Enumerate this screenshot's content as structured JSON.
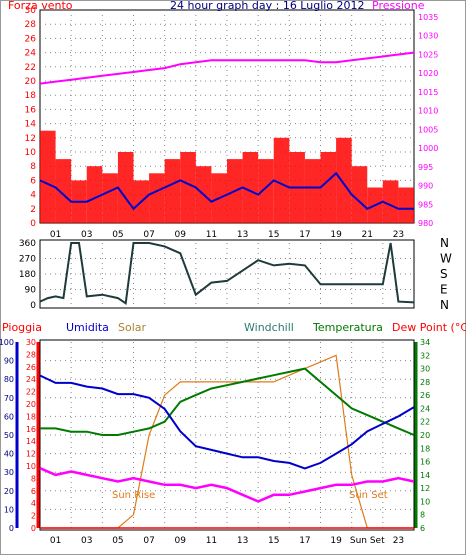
{
  "header": {
    "left": "Forza vento",
    "center": "24 hour graph day : 16 Luglio 2012",
    "right": "Pressione"
  },
  "colors": {
    "red": "#ff0000",
    "magenta": "#ff00ff",
    "blue": "#0000cc",
    "navy": "#000080",
    "darkslate": "#1f3a3a",
    "orange": "#e07a18",
    "green": "#007a00",
    "teal": "#2e7a6e"
  },
  "chart_data": [
    {
      "type": "line",
      "panel": "top",
      "x_ticks": [
        "01",
        "03",
        "05",
        "07",
        "09",
        "11",
        "13",
        "15",
        "17",
        "19",
        "21",
        "23"
      ],
      "ylim_left": [
        0,
        30
      ],
      "yticks_left": [
        "30",
        "28",
        "26",
        "24",
        "22",
        "20",
        "18",
        "16",
        "14",
        "12",
        "10",
        "8",
        "6",
        "4",
        "2",
        "0"
      ],
      "ylim_right": [
        980,
        1035
      ],
      "yticks_right": [
        "1035",
        "1030",
        "1025",
        "1020",
        "1015",
        "1010",
        "1005",
        "1000",
        "995",
        "990",
        "985",
        "980"
      ],
      "x": [
        0,
        1,
        2,
        3,
        4,
        5,
        6,
        7,
        8,
        9,
        10,
        11,
        12,
        13,
        14,
        15,
        16,
        17,
        18,
        19,
        20,
        21,
        22,
        23,
        24
      ],
      "series": [
        {
          "name": "Forza vento",
          "axis": "left",
          "style": "bars",
          "values": [
            13,
            9,
            6,
            8,
            7,
            10,
            6,
            7,
            9,
            10,
            8,
            7,
            9,
            10,
            9,
            12,
            10,
            9,
            10,
            12,
            8,
            5,
            6,
            5,
            5
          ]
        },
        {
          "name": "",
          "axis": "left",
          "style": "line",
          "values": [
            6,
            5,
            3,
            3,
            4,
            5,
            2,
            4,
            5,
            6,
            5,
            3,
            4,
            5,
            4,
            6,
            5,
            5,
            5,
            7,
            4,
            2,
            3,
            2,
            2
          ]
        },
        {
          "name": "Pressione",
          "axis": "right",
          "style": "line",
          "values": [
            1016,
            1016.5,
            1017,
            1017.5,
            1018,
            1018.5,
            1019,
            1019.5,
            1020,
            1021,
            1021.5,
            1022,
            1022,
            1022,
            1022,
            1022,
            1022,
            1022,
            1021.5,
            1021.5,
            1022,
            1022.5,
            1023,
            1023.5,
            1024
          ]
        }
      ]
    },
    {
      "type": "line",
      "panel": "middle",
      "x_ticks": [
        "01",
        "03",
        "05",
        "07",
        "09",
        "11",
        "13",
        "15",
        "17",
        "19",
        "21",
        "23"
      ],
      "ylim": [
        0,
        360
      ],
      "yticks": [
        "360",
        "270",
        "180",
        "90",
        "0"
      ],
      "right_labels": [
        "N",
        "W",
        "S",
        "E",
        "N"
      ],
      "x": [
        0,
        0.5,
        1,
        1.5,
        2,
        2.5,
        3,
        4,
        5,
        5.5,
        6,
        7,
        8,
        9,
        10,
        11,
        12,
        13,
        14,
        15,
        16,
        17,
        18,
        19,
        20,
        21,
        22,
        22.5,
        23,
        24
      ],
      "series": [
        {
          "name": "",
          "values": [
            20,
            40,
            50,
            40,
            360,
            360,
            50,
            60,
            40,
            10,
            360,
            360,
            340,
            300,
            60,
            130,
            140,
            200,
            260,
            230,
            240,
            230,
            120,
            120,
            120,
            120,
            120,
            360,
            20,
            15
          ]
        }
      ]
    },
    {
      "type": "line",
      "panel": "bottom",
      "legend": [
        "Pioggia",
        "Umidita",
        "Solar",
        "Windchill",
        "Temperatura",
        "Dew Point (°C)"
      ],
      "x_ticks": [
        "01",
        "03",
        "05",
        "07",
        "09",
        "11",
        "13",
        "15",
        "17",
        "19",
        "Sun Set",
        "23"
      ],
      "ylim_umidita": [
        0,
        100
      ],
      "yticks_umidita": [
        "100",
        "90",
        "80",
        "70",
        "60",
        "50",
        "40",
        "30",
        "20",
        "10",
        "0"
      ],
      "yticks_pioggia": [
        "30",
        "28",
        "26",
        "24",
        "22",
        "20",
        "18",
        "16",
        "14",
        "12",
        "10",
        "8",
        "6",
        "4",
        "2",
        "0"
      ],
      "ylim_temp": [
        6,
        34
      ],
      "yticks_temp": [
        "34",
        "32",
        "30",
        "28",
        "26",
        "24",
        "22",
        "20",
        "18",
        "16",
        "14",
        "12",
        "10",
        "8",
        "6"
      ],
      "annotations": [
        "Sun Rise",
        "Sun Set"
      ],
      "x": [
        0,
        1,
        2,
        3,
        4,
        5,
        6,
        7,
        8,
        9,
        10,
        11,
        12,
        13,
        14,
        15,
        16,
        17,
        18,
        19,
        20,
        21,
        22,
        23,
        24
      ],
      "series": [
        {
          "name": "Umidita",
          "axis": "umidita",
          "values": [
            82,
            78,
            78,
            76,
            75,
            72,
            72,
            70,
            64,
            52,
            44,
            42,
            40,
            38,
            38,
            36,
            35,
            32,
            35,
            40,
            45,
            52,
            56,
            60,
            65
          ]
        },
        {
          "name": "Temperatura",
          "axis": "temp",
          "values": [
            21,
            21,
            20.5,
            20.5,
            20,
            20,
            20.5,
            21,
            22,
            25,
            26,
            27,
            27.5,
            28,
            28.5,
            29,
            29.5,
            30,
            28,
            26,
            24,
            23,
            22,
            21,
            20
          ]
        },
        {
          "name": "Solar",
          "axis": "temp",
          "values": [
            6,
            6,
            6,
            6,
            6,
            6,
            8,
            20,
            26,
            28,
            28,
            28,
            28,
            28,
            28,
            28,
            29,
            30,
            31,
            32,
            14,
            6,
            6,
            6,
            6
          ]
        },
        {
          "name": "Dew Point (°C)",
          "axis": "temp",
          "values": [
            15,
            14,
            14.5,
            14,
            13.5,
            13,
            13.5,
            13,
            12.5,
            12.5,
            12,
            12.5,
            12,
            11,
            10,
            11,
            11,
            11.5,
            12,
            12.5,
            12.5,
            13,
            13,
            13.5,
            13
          ]
        },
        {
          "name": "Pioggia",
          "axis": "pioggia",
          "values": [
            0,
            0,
            0,
            0,
            0,
            0,
            0,
            0,
            0,
            0,
            0,
            0,
            0,
            0,
            0,
            0,
            0,
            0,
            0,
            0,
            0,
            0,
            0,
            0,
            0
          ]
        }
      ]
    }
  ]
}
